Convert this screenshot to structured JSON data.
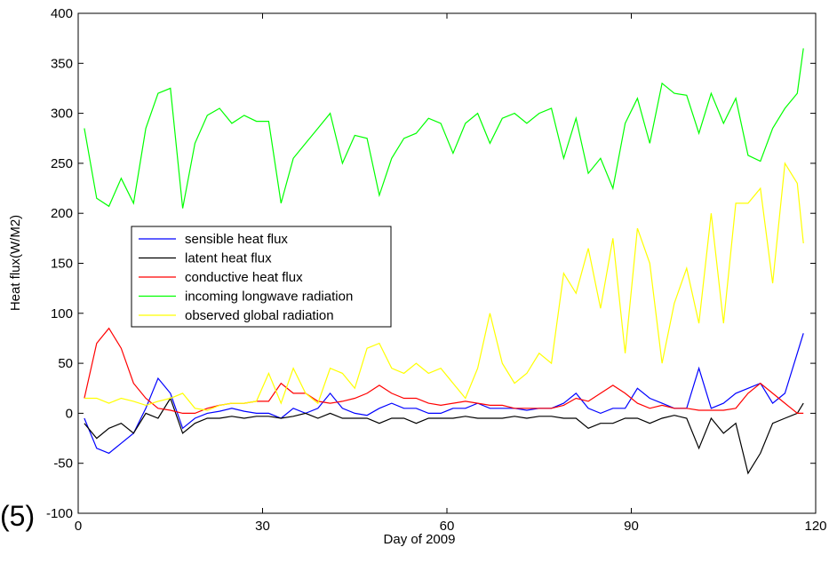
{
  "chart_data": {
    "type": "line",
    "xlabel": "Day of 2009",
    "ylabel": "Heat flux(W/M2)",
    "annotation": "(5)",
    "xlim": [
      0,
      120
    ],
    "ylim": [
      -100,
      400
    ],
    "xticks": [
      0,
      30,
      60,
      90,
      120
    ],
    "yticks": [
      -100,
      -50,
      0,
      50,
      100,
      150,
      200,
      250,
      300,
      350,
      400
    ],
    "legend_loc": "center left",
    "x": [
      1,
      3,
      5,
      7,
      9,
      11,
      13,
      15,
      17,
      19,
      21,
      23,
      25,
      27,
      29,
      31,
      33,
      35,
      37,
      39,
      41,
      43,
      45,
      47,
      49,
      51,
      53,
      55,
      57,
      59,
      61,
      63,
      65,
      67,
      69,
      71,
      73,
      75,
      77,
      79,
      81,
      83,
      85,
      87,
      89,
      91,
      93,
      95,
      97,
      99,
      101,
      103,
      105,
      107,
      109,
      111,
      113,
      115,
      117,
      118
    ],
    "series": [
      {
        "name": "sensible heat flux",
        "color": "#0000ff",
        "values": [
          -5,
          -35,
          -40,
          -30,
          -20,
          5,
          35,
          20,
          -15,
          -5,
          0,
          2,
          5,
          2,
          0,
          0,
          -5,
          5,
          0,
          5,
          20,
          5,
          0,
          -2,
          5,
          10,
          5,
          5,
          0,
          0,
          5,
          5,
          10,
          5,
          5,
          5,
          3,
          5,
          5,
          10,
          20,
          5,
          0,
          5,
          5,
          25,
          15,
          10,
          5,
          5,
          45,
          5,
          10,
          20,
          25,
          30,
          10,
          20,
          60,
          80
        ]
      },
      {
        "name": "latent heat flux",
        "color": "#000000",
        "values": [
          -10,
          -25,
          -15,
          -10,
          -20,
          0,
          -5,
          15,
          -20,
          -10,
          -5,
          -5,
          -3,
          -5,
          -3,
          -3,
          -5,
          -3,
          0,
          -5,
          0,
          -5,
          -5,
          -5,
          -10,
          -5,
          -5,
          -10,
          -5,
          -5,
          -5,
          -3,
          -5,
          -5,
          -5,
          -3,
          -5,
          -3,
          -3,
          -5,
          -5,
          -15,
          -10,
          -10,
          -5,
          -5,
          -10,
          -5,
          -2,
          -5,
          -35,
          -5,
          -20,
          -10,
          -60,
          -40,
          -10,
          -5,
          0,
          10
        ]
      },
      {
        "name": "conductive heat flux",
        "color": "#ff0000",
        "values": [
          15,
          70,
          85,
          65,
          30,
          15,
          5,
          3,
          0,
          0,
          5,
          8,
          10,
          10,
          12,
          12,
          30,
          20,
          20,
          12,
          10,
          12,
          15,
          20,
          28,
          20,
          15,
          15,
          10,
          8,
          10,
          12,
          10,
          8,
          8,
          5,
          5,
          5,
          5,
          8,
          15,
          12,
          20,
          28,
          20,
          10,
          5,
          8,
          5,
          5,
          3,
          3,
          3,
          5,
          20,
          30,
          20,
          10,
          0,
          0
        ]
      },
      {
        "name": "incoming longwave radiation",
        "color": "#00ff00",
        "values": [
          285,
          215,
          207,
          235,
          210,
          285,
          320,
          325,
          205,
          270,
          298,
          305,
          290,
          298,
          292,
          292,
          210,
          255,
          270,
          285,
          300,
          250,
          278,
          275,
          218,
          255,
          275,
          280,
          295,
          290,
          260,
          290,
          300,
          270,
          295,
          300,
          290,
          300,
          305,
          255,
          295,
          240,
          255,
          225,
          290,
          315,
          270,
          330,
          320,
          318,
          280,
          320,
          290,
          315,
          258,
          252,
          285,
          305,
          320,
          365
        ]
      },
      {
        "name": "observed global radiation",
        "color": "#ffff00",
        "values": [
          15,
          15,
          10,
          15,
          12,
          8,
          12,
          15,
          20,
          5,
          3,
          8,
          10,
          10,
          12,
          40,
          10,
          45,
          20,
          10,
          45,
          40,
          25,
          65,
          70,
          45,
          40,
          50,
          40,
          45,
          30,
          15,
          45,
          100,
          50,
          30,
          40,
          60,
          50,
          140,
          120,
          165,
          105,
          175,
          60,
          185,
          150,
          50,
          110,
          145,
          90,
          200,
          90,
          210,
          210,
          225,
          130,
          250,
          230,
          170
        ]
      }
    ]
  }
}
